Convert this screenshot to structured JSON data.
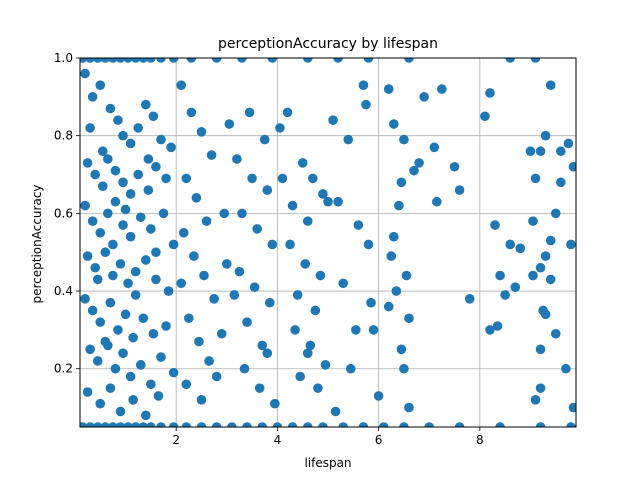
{
  "chart_data": {
    "type": "scatter",
    "title": "perceptionAccuracy by lifespan",
    "xlabel": "lifespan",
    "ylabel": "perceptionAccuracy",
    "xlim": [
      0.1,
      9.9
    ],
    "ylim": [
      0.05,
      1.0
    ],
    "xticks": [
      2,
      4,
      6,
      8
    ],
    "yticks": [
      0.2,
      0.4,
      0.6,
      0.8,
      1.0
    ],
    "xtick_labels": [
      "2",
      "4",
      "6",
      "8"
    ],
    "ytick_labels": [
      "0.2",
      "0.4",
      "0.6",
      "0.8",
      "1.0"
    ],
    "grid": true,
    "marker_color": "#1f77b4",
    "series": [
      {
        "points": [
          [
            0.15,
            1.0
          ],
          [
            0.3,
            1.0
          ],
          [
            0.45,
            1.0
          ],
          [
            0.6,
            1.0
          ],
          [
            0.75,
            1.0
          ],
          [
            0.9,
            1.0
          ],
          [
            1.05,
            1.0
          ],
          [
            1.2,
            1.0
          ],
          [
            1.35,
            1.0
          ],
          [
            1.5,
            1.0
          ],
          [
            1.7,
            1.0
          ],
          [
            1.95,
            1.0
          ],
          [
            2.3,
            1.0
          ],
          [
            2.8,
            1.0
          ],
          [
            3.3,
            1.0
          ],
          [
            3.9,
            1.0
          ],
          [
            4.6,
            1.0
          ],
          [
            5.2,
            1.0
          ],
          [
            5.8,
            1.0
          ],
          [
            6.6,
            1.0
          ],
          [
            8.6,
            1.0
          ],
          [
            9.1,
            1.0
          ],
          [
            0.15,
            0.05
          ],
          [
            0.3,
            0.05
          ],
          [
            0.45,
            0.05
          ],
          [
            0.6,
            0.05
          ],
          [
            0.75,
            0.05
          ],
          [
            0.9,
            0.05
          ],
          [
            1.05,
            0.05
          ],
          [
            1.2,
            0.05
          ],
          [
            1.35,
            0.05
          ],
          [
            1.5,
            0.05
          ],
          [
            1.7,
            0.05
          ],
          [
            1.95,
            0.05
          ],
          [
            2.2,
            0.05
          ],
          [
            2.5,
            0.05
          ],
          [
            2.8,
            0.05
          ],
          [
            3.1,
            0.05
          ],
          [
            3.4,
            0.05
          ],
          [
            3.7,
            0.05
          ],
          [
            4.0,
            0.05
          ],
          [
            4.3,
            0.05
          ],
          [
            4.6,
            0.05
          ],
          [
            4.9,
            0.05
          ],
          [
            5.3,
            0.05
          ],
          [
            5.7,
            0.05
          ],
          [
            6.1,
            0.05
          ],
          [
            6.5,
            0.05
          ],
          [
            7.0,
            0.05
          ],
          [
            7.6,
            0.05
          ],
          [
            8.4,
            0.05
          ],
          [
            9.2,
            0.05
          ],
          [
            9.8,
            0.05
          ],
          [
            0.2,
            0.96
          ],
          [
            0.35,
            0.9
          ],
          [
            0.5,
            0.93
          ],
          [
            0.7,
            0.87
          ],
          [
            0.85,
            0.84
          ],
          [
            0.95,
            0.8
          ],
          [
            1.1,
            0.78
          ],
          [
            1.25,
            0.82
          ],
          [
            1.4,
            0.88
          ],
          [
            1.55,
            0.85
          ],
          [
            1.7,
            0.79
          ],
          [
            1.9,
            0.77
          ],
          [
            0.25,
            0.73
          ],
          [
            0.4,
            0.7
          ],
          [
            0.55,
            0.67
          ],
          [
            0.65,
            0.74
          ],
          [
            0.8,
            0.71
          ],
          [
            0.95,
            0.68
          ],
          [
            1.1,
            0.65
          ],
          [
            1.25,
            0.7
          ],
          [
            1.45,
            0.66
          ],
          [
            1.6,
            0.72
          ],
          [
            1.8,
            0.69
          ],
          [
            0.2,
            0.62
          ],
          [
            0.35,
            0.58
          ],
          [
            0.5,
            0.55
          ],
          [
            0.65,
            0.6
          ],
          [
            0.8,
            0.63
          ],
          [
            0.95,
            0.57
          ],
          [
            1.1,
            0.54
          ],
          [
            1.3,
            0.59
          ],
          [
            1.5,
            0.56
          ],
          [
            1.75,
            0.6
          ],
          [
            1.95,
            0.52
          ],
          [
            0.25,
            0.49
          ],
          [
            0.4,
            0.46
          ],
          [
            0.6,
            0.5
          ],
          [
            0.75,
            0.44
          ],
          [
            0.9,
            0.47
          ],
          [
            1.05,
            0.42
          ],
          [
            1.2,
            0.45
          ],
          [
            1.4,
            0.48
          ],
          [
            1.6,
            0.43
          ],
          [
            1.85,
            0.4
          ],
          [
            0.2,
            0.38
          ],
          [
            0.35,
            0.35
          ],
          [
            0.5,
            0.32
          ],
          [
            0.7,
            0.37
          ],
          [
            0.85,
            0.3
          ],
          [
            1.0,
            0.34
          ],
          [
            1.15,
            0.28
          ],
          [
            1.35,
            0.33
          ],
          [
            1.55,
            0.29
          ],
          [
            1.8,
            0.31
          ],
          [
            0.3,
            0.25
          ],
          [
            0.45,
            0.22
          ],
          [
            0.6,
            0.27
          ],
          [
            0.8,
            0.2
          ],
          [
            0.95,
            0.24
          ],
          [
            1.1,
            0.18
          ],
          [
            1.3,
            0.21
          ],
          [
            1.5,
            0.16
          ],
          [
            1.7,
            0.23
          ],
          [
            1.95,
            0.19
          ],
          [
            0.25,
            0.14
          ],
          [
            0.5,
            0.11
          ],
          [
            0.7,
            0.15
          ],
          [
            0.9,
            0.09
          ],
          [
            1.15,
            0.12
          ],
          [
            1.4,
            0.08
          ],
          [
            1.65,
            0.13
          ],
          [
            0.3,
            0.82
          ],
          [
            0.55,
            0.76
          ],
          [
            0.75,
            0.52
          ],
          [
            1.0,
            0.61
          ],
          [
            1.2,
            0.39
          ],
          [
            0.45,
            0.43
          ],
          [
            0.65,
            0.26
          ],
          [
            1.45,
            0.74
          ],
          [
            1.6,
            0.5
          ],
          [
            2.1,
            0.93
          ],
          [
            2.3,
            0.86
          ],
          [
            2.5,
            0.81
          ],
          [
            2.7,
            0.75
          ],
          [
            2.2,
            0.69
          ],
          [
            2.4,
            0.64
          ],
          [
            2.6,
            0.58
          ],
          [
            2.15,
            0.55
          ],
          [
            2.35,
            0.49
          ],
          [
            2.55,
            0.44
          ],
          [
            2.75,
            0.38
          ],
          [
            2.25,
            0.33
          ],
          [
            2.45,
            0.27
          ],
          [
            2.65,
            0.22
          ],
          [
            2.2,
            0.16
          ],
          [
            2.5,
            0.12
          ],
          [
            2.8,
            0.18
          ],
          [
            2.95,
            0.6
          ],
          [
            3.0,
            0.47
          ],
          [
            2.1,
            0.42
          ],
          [
            2.9,
            0.29
          ],
          [
            3.05,
            0.83
          ],
          [
            3.2,
            0.74
          ],
          [
            3.5,
            0.69
          ],
          [
            3.8,
            0.66
          ],
          [
            3.3,
            0.6
          ],
          [
            3.6,
            0.56
          ],
          [
            3.9,
            0.52
          ],
          [
            3.25,
            0.45
          ],
          [
            3.55,
            0.41
          ],
          [
            3.85,
            0.37
          ],
          [
            3.4,
            0.32
          ],
          [
            3.7,
            0.26
          ],
          [
            3.35,
            0.2
          ],
          [
            3.65,
            0.15
          ],
          [
            3.95,
            0.11
          ],
          [
            3.45,
            0.86
          ],
          [
            3.75,
            0.79
          ],
          [
            4.05,
            0.82
          ],
          [
            3.15,
            0.39
          ],
          [
            3.8,
            0.24
          ],
          [
            4.2,
            0.86
          ],
          [
            4.5,
            0.73
          ],
          [
            4.7,
            0.69
          ],
          [
            4.3,
            0.62
          ],
          [
            4.6,
            0.58
          ],
          [
            4.9,
            0.65
          ],
          [
            4.25,
            0.52
          ],
          [
            4.55,
            0.47
          ],
          [
            4.85,
            0.44
          ],
          [
            4.4,
            0.39
          ],
          [
            4.75,
            0.35
          ],
          [
            4.35,
            0.3
          ],
          [
            4.65,
            0.26
          ],
          [
            4.95,
            0.21
          ],
          [
            4.45,
            0.18
          ],
          [
            4.8,
            0.15
          ],
          [
            5.0,
            0.63
          ],
          [
            4.1,
            0.69
          ],
          [
            4.6,
            0.24
          ],
          [
            5.1,
            0.84
          ],
          [
            5.4,
            0.79
          ],
          [
            5.7,
            0.93
          ],
          [
            5.2,
            0.63
          ],
          [
            5.6,
            0.57
          ],
          [
            5.8,
            0.52
          ],
          [
            5.3,
            0.42
          ],
          [
            5.55,
            0.3
          ],
          [
            5.85,
            0.37
          ],
          [
            5.45,
            0.2
          ],
          [
            5.15,
            0.09
          ],
          [
            5.75,
            0.88
          ],
          [
            5.9,
            0.3
          ],
          [
            6.0,
            0.13
          ],
          [
            6.2,
            0.92
          ],
          [
            6.3,
            0.83
          ],
          [
            6.5,
            0.79
          ],
          [
            6.45,
            0.68
          ],
          [
            6.7,
            0.71
          ],
          [
            6.4,
            0.62
          ],
          [
            6.25,
            0.49
          ],
          [
            6.55,
            0.44
          ],
          [
            6.35,
            0.4
          ],
          [
            6.6,
            0.33
          ],
          [
            6.2,
            0.36
          ],
          [
            6.45,
            0.25
          ],
          [
            6.5,
            0.2
          ],
          [
            6.6,
            0.1
          ],
          [
            6.3,
            0.54
          ],
          [
            6.8,
            0.73
          ],
          [
            6.9,
            0.9
          ],
          [
            7.1,
            0.77
          ],
          [
            7.25,
            0.92
          ],
          [
            7.15,
            0.63
          ],
          [
            7.5,
            0.72
          ],
          [
            7.6,
            0.66
          ],
          [
            7.8,
            0.38
          ],
          [
            8.1,
            0.85
          ],
          [
            8.2,
            0.91
          ],
          [
            8.3,
            0.57
          ],
          [
            8.4,
            0.44
          ],
          [
            8.2,
            0.3
          ],
          [
            8.35,
            0.31
          ],
          [
            8.5,
            0.39
          ],
          [
            8.6,
            0.52
          ],
          [
            8.7,
            0.41
          ],
          [
            8.8,
            0.51
          ],
          [
            9.0,
            0.76
          ],
          [
            9.1,
            0.69
          ],
          [
            9.2,
            0.76
          ],
          [
            9.3,
            0.8
          ],
          [
            9.05,
            0.58
          ],
          [
            9.2,
            0.46
          ],
          [
            9.3,
            0.49
          ],
          [
            9.4,
            0.53
          ],
          [
            9.5,
            0.6
          ],
          [
            9.6,
            0.76
          ],
          [
            9.4,
            0.43
          ],
          [
            9.25,
            0.35
          ],
          [
            9.3,
            0.34
          ],
          [
            9.2,
            0.25
          ],
          [
            9.1,
            0.12
          ],
          [
            9.2,
            0.15
          ],
          [
            9.5,
            0.29
          ],
          [
            9.7,
            0.2
          ],
          [
            9.8,
            0.52
          ],
          [
            9.85,
            0.72
          ],
          [
            9.75,
            0.78
          ],
          [
            9.4,
            0.93
          ],
          [
            9.6,
            0.68
          ],
          [
            9.85,
            0.1
          ],
          [
            9.05,
            0.44
          ]
        ]
      }
    ]
  }
}
